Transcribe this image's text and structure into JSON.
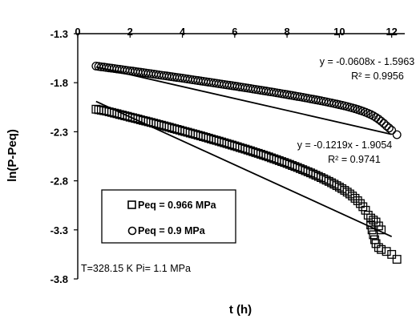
{
  "chart_data": {
    "type": "scatter",
    "title": "",
    "xlabel": "t (h)",
    "ylabel": "ln(P-Peq)",
    "xlim": [
      0,
      12.5
    ],
    "ylim": [
      -3.8,
      -1.3
    ],
    "x_ticks": [
      0,
      2,
      4,
      6,
      8,
      10,
      12
    ],
    "x_tick_labels": [
      "0",
      "2",
      "4",
      "6",
      "8",
      "10",
      "12"
    ],
    "y_ticks": [
      -1.3,
      -1.8,
      -2.3,
      -2.8,
      -3.3,
      -3.8
    ],
    "y_tick_labels": [
      "-1.3",
      "-1.8",
      "-2.3",
      "-2.8",
      "-3.3",
      "-3.8"
    ],
    "x_axis_position": "top (x-axis drawn at y = -1.3)",
    "grid": false,
    "legend_position": "lower-left inside plot",
    "series": [
      {
        "name": "Peq = 0.966 MPa",
        "marker": "open-square",
        "color": "#000000",
        "points": [
          [
            0.7,
            -2.07
          ],
          [
            0.8,
            -2.075
          ],
          [
            0.9,
            -2.08
          ],
          [
            1.0,
            -2.085
          ],
          [
            1.1,
            -2.09
          ],
          [
            1.2,
            -2.097
          ],
          [
            1.3,
            -2.103
          ],
          [
            1.4,
            -2.11
          ],
          [
            1.5,
            -2.116
          ],
          [
            1.6,
            -2.124
          ],
          [
            1.7,
            -2.13
          ],
          [
            1.8,
            -2.137
          ],
          [
            1.9,
            -2.143
          ],
          [
            2.0,
            -2.151
          ],
          [
            2.1,
            -2.157
          ],
          [
            2.2,
            -2.164
          ],
          [
            2.3,
            -2.17
          ],
          [
            2.4,
            -2.178
          ],
          [
            2.5,
            -2.185
          ],
          [
            2.6,
            -2.191
          ],
          [
            2.7,
            -2.198
          ],
          [
            2.8,
            -2.205
          ],
          [
            2.9,
            -2.212
          ],
          [
            3.0,
            -2.219
          ],
          [
            3.1,
            -2.226
          ],
          [
            3.2,
            -2.233
          ],
          [
            3.3,
            -2.24
          ],
          [
            3.4,
            -2.247
          ],
          [
            3.5,
            -2.254
          ],
          [
            3.6,
            -2.262
          ],
          [
            3.7,
            -2.269
          ],
          [
            3.8,
            -2.276
          ],
          [
            3.9,
            -2.283
          ],
          [
            4.0,
            -2.291
          ],
          [
            4.1,
            -2.298
          ],
          [
            4.2,
            -2.305
          ],
          [
            4.3,
            -2.313
          ],
          [
            4.4,
            -2.32
          ],
          [
            4.5,
            -2.327
          ],
          [
            4.6,
            -2.335
          ],
          [
            4.7,
            -2.342
          ],
          [
            4.8,
            -2.35
          ],
          [
            4.9,
            -2.357
          ],
          [
            5.0,
            -2.365
          ],
          [
            5.1,
            -2.373
          ],
          [
            5.2,
            -2.381
          ],
          [
            5.3,
            -2.388
          ],
          [
            5.4,
            -2.396
          ],
          [
            5.5,
            -2.404
          ],
          [
            5.6,
            -2.412
          ],
          [
            5.7,
            -2.42
          ],
          [
            5.8,
            -2.428
          ],
          [
            5.9,
            -2.436
          ],
          [
            6.0,
            -2.444
          ],
          [
            6.1,
            -2.452
          ],
          [
            6.2,
            -2.461
          ],
          [
            6.3,
            -2.469
          ],
          [
            6.4,
            -2.477
          ],
          [
            6.5,
            -2.486
          ],
          [
            6.6,
            -2.494
          ],
          [
            6.7,
            -2.503
          ],
          [
            6.8,
            -2.512
          ],
          [
            6.9,
            -2.52
          ],
          [
            7.0,
            -2.529
          ],
          [
            7.1,
            -2.538
          ],
          [
            7.2,
            -2.547
          ],
          [
            7.3,
            -2.556
          ],
          [
            7.4,
            -2.566
          ],
          [
            7.5,
            -2.575
          ],
          [
            7.6,
            -2.584
          ],
          [
            7.7,
            -2.594
          ],
          [
            7.8,
            -2.604
          ],
          [
            7.9,
            -2.613
          ],
          [
            8.0,
            -2.623
          ],
          [
            8.1,
            -2.633
          ],
          [
            8.2,
            -2.644
          ],
          [
            8.3,
            -2.654
          ],
          [
            8.4,
            -2.664
          ],
          [
            8.5,
            -2.675
          ],
          [
            8.6,
            -2.686
          ],
          [
            8.7,
            -2.697
          ],
          [
            8.8,
            -2.708
          ],
          [
            8.9,
            -2.719
          ],
          [
            9.0,
            -2.731
          ],
          [
            9.1,
            -2.743
          ],
          [
            9.2,
            -2.755
          ],
          [
            9.3,
            -2.767
          ],
          [
            9.4,
            -2.78
          ],
          [
            9.5,
            -2.793
          ],
          [
            9.6,
            -2.806
          ],
          [
            9.7,
            -2.82
          ],
          [
            9.8,
            -2.834
          ],
          [
            9.9,
            -2.849
          ],
          [
            10.0,
            -2.864
          ],
          [
            10.1,
            -2.88
          ],
          [
            10.2,
            -2.897
          ],
          [
            10.3,
            -2.915
          ],
          [
            10.4,
            -2.934
          ],
          [
            10.5,
            -2.955
          ],
          [
            10.6,
            -2.978
          ],
          [
            10.7,
            -3.003
          ],
          [
            10.8,
            -3.032
          ],
          [
            10.9,
            -3.064
          ],
          [
            11.0,
            -3.1
          ],
          [
            11.1,
            -3.15
          ],
          [
            11.2,
            -3.18
          ],
          [
            11.3,
            -3.2
          ],
          [
            11.4,
            -3.22
          ],
          [
            11.5,
            -3.26
          ],
          [
            11.6,
            -3.3
          ],
          [
            11.2,
            -3.25
          ],
          [
            11.25,
            -3.3
          ],
          [
            11.3,
            -3.35
          ],
          [
            11.35,
            -3.4
          ],
          [
            11.4,
            -3.44
          ],
          [
            11.5,
            -3.48
          ],
          [
            11.6,
            -3.5
          ],
          [
            11.8,
            -3.52
          ],
          [
            12.0,
            -3.55
          ],
          [
            12.2,
            -3.6
          ]
        ],
        "trendline": {
          "equation": "y = -0.1219x - 1.9054",
          "r_squared": "R² = 0.9741",
          "slope": -0.1219,
          "intercept": -1.9054,
          "x_range": [
            0.7,
            12.0
          ]
        }
      },
      {
        "name": "Peq = 0.9 MPa",
        "marker": "open-circle",
        "color": "#000000",
        "points": [
          [
            0.7,
            -1.63
          ],
          [
            0.8,
            -1.634
          ],
          [
            0.9,
            -1.638
          ],
          [
            1.0,
            -1.641
          ],
          [
            1.1,
            -1.645
          ],
          [
            1.2,
            -1.649
          ],
          [
            1.3,
            -1.652
          ],
          [
            1.4,
            -1.656
          ],
          [
            1.5,
            -1.66
          ],
          [
            1.6,
            -1.663
          ],
          [
            1.7,
            -1.667
          ],
          [
            1.8,
            -1.671
          ],
          [
            1.9,
            -1.675
          ],
          [
            2.0,
            -1.678
          ],
          [
            2.1,
            -1.682
          ],
          [
            2.2,
            -1.686
          ],
          [
            2.3,
            -1.69
          ],
          [
            2.4,
            -1.693
          ],
          [
            2.5,
            -1.697
          ],
          [
            2.6,
            -1.701
          ],
          [
            2.7,
            -1.705
          ],
          [
            2.8,
            -1.708
          ],
          [
            2.9,
            -1.712
          ],
          [
            3.0,
            -1.716
          ],
          [
            3.1,
            -1.72
          ],
          [
            3.2,
            -1.724
          ],
          [
            3.3,
            -1.727
          ],
          [
            3.4,
            -1.731
          ],
          [
            3.5,
            -1.735
          ],
          [
            3.6,
            -1.739
          ],
          [
            3.7,
            -1.743
          ],
          [
            3.8,
            -1.747
          ],
          [
            3.9,
            -1.75
          ],
          [
            4.0,
            -1.754
          ],
          [
            4.1,
            -1.758
          ],
          [
            4.2,
            -1.762
          ],
          [
            4.3,
            -1.766
          ],
          [
            4.4,
            -1.77
          ],
          [
            4.5,
            -1.774
          ],
          [
            4.6,
            -1.778
          ],
          [
            4.7,
            -1.782
          ],
          [
            4.8,
            -1.786
          ],
          [
            4.9,
            -1.79
          ],
          [
            5.0,
            -1.794
          ],
          [
            5.1,
            -1.798
          ],
          [
            5.2,
            -1.802
          ],
          [
            5.3,
            -1.806
          ],
          [
            5.4,
            -1.81
          ],
          [
            5.5,
            -1.814
          ],
          [
            5.6,
            -1.818
          ],
          [
            5.7,
            -1.822
          ],
          [
            5.8,
            -1.826
          ],
          [
            5.9,
            -1.83
          ],
          [
            6.0,
            -1.834
          ],
          [
            6.1,
            -1.838
          ],
          [
            6.2,
            -1.843
          ],
          [
            6.3,
            -1.847
          ],
          [
            6.4,
            -1.851
          ],
          [
            6.5,
            -1.855
          ],
          [
            6.6,
            -1.859
          ],
          [
            6.7,
            -1.864
          ],
          [
            6.8,
            -1.868
          ],
          [
            6.9,
            -1.872
          ],
          [
            7.0,
            -1.877
          ],
          [
            7.1,
            -1.881
          ],
          [
            7.2,
            -1.885
          ],
          [
            7.3,
            -1.89
          ],
          [
            7.4,
            -1.894
          ],
          [
            7.5,
            -1.898
          ],
          [
            7.6,
            -1.903
          ],
          [
            7.7,
            -1.907
          ],
          [
            7.8,
            -1.912
          ],
          [
            7.9,
            -1.916
          ],
          [
            8.0,
            -1.921
          ],
          [
            8.1,
            -1.926
          ],
          [
            8.2,
            -1.93
          ],
          [
            8.3,
            -1.935
          ],
          [
            8.4,
            -1.94
          ],
          [
            8.5,
            -1.944
          ],
          [
            8.6,
            -1.949
          ],
          [
            8.7,
            -1.954
          ],
          [
            8.8,
            -1.959
          ],
          [
            8.9,
            -1.964
          ],
          [
            9.0,
            -1.969
          ],
          [
            9.1,
            -1.974
          ],
          [
            9.2,
            -1.979
          ],
          [
            9.3,
            -1.984
          ],
          [
            9.4,
            -1.99
          ],
          [
            9.5,
            -1.995
          ],
          [
            9.6,
            -2.001
          ],
          [
            9.7,
            -2.006
          ],
          [
            9.8,
            -2.012
          ],
          [
            9.9,
            -2.018
          ],
          [
            10.0,
            -2.024
          ],
          [
            10.1,
            -2.03
          ],
          [
            10.2,
            -2.036
          ],
          [
            10.3,
            -2.043
          ],
          [
            10.4,
            -2.05
          ],
          [
            10.5,
            -2.057
          ],
          [
            10.6,
            -2.065
          ],
          [
            10.7,
            -2.073
          ],
          [
            10.8,
            -2.082
          ],
          [
            10.9,
            -2.091
          ],
          [
            11.0,
            -2.101
          ],
          [
            11.1,
            -2.112
          ],
          [
            11.2,
            -2.124
          ],
          [
            11.3,
            -2.138
          ],
          [
            11.4,
            -2.154
          ],
          [
            11.5,
            -2.172
          ],
          [
            11.6,
            -2.193
          ],
          [
            11.7,
            -2.215
          ],
          [
            11.8,
            -2.24
          ],
          [
            11.9,
            -2.262
          ],
          [
            12.0,
            -2.285
          ],
          [
            12.2,
            -2.33
          ]
        ],
        "trendline": {
          "equation": "y = -0.0608x - 1.5963",
          "r_squared": "R² = 0.9956",
          "slope": -0.0608,
          "intercept": -1.5963,
          "x_range": [
            0.7,
            12.0
          ]
        }
      }
    ],
    "annotation": "T=328.15 K  Pi= 1.1 MPa"
  }
}
